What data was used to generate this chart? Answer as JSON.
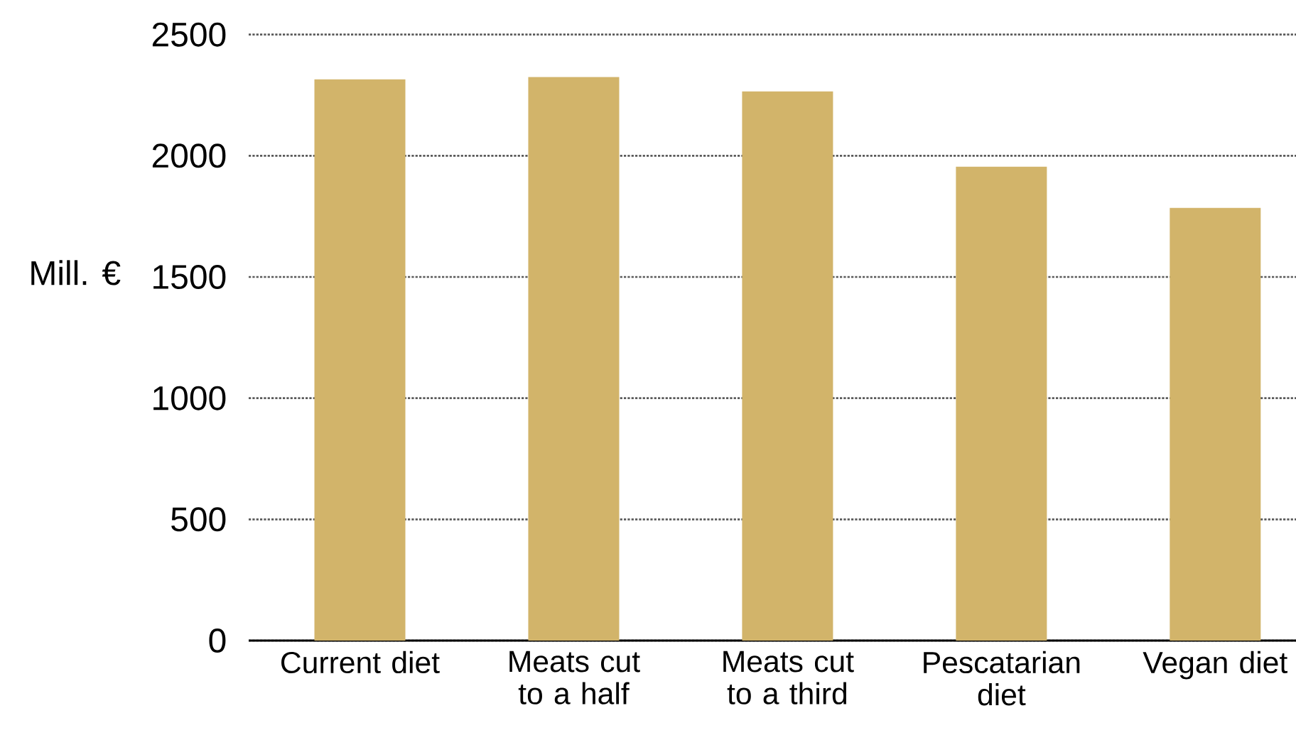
{
  "chart_data": {
    "type": "bar",
    "ylabel": "Mill. €",
    "categories": [
      "Current diet",
      "Meats cut to a half",
      "Meats cut to a third",
      "Pescatarian diet",
      "Vegan diet"
    ],
    "values": [
      2315,
      2325,
      2265,
      1955,
      1785
    ],
    "color": "#d2b46a",
    "ylim": [
      0,
      2500
    ],
    "yticks": [
      0,
      500,
      1000,
      1500,
      2000,
      2500
    ],
    "grid": "y"
  }
}
